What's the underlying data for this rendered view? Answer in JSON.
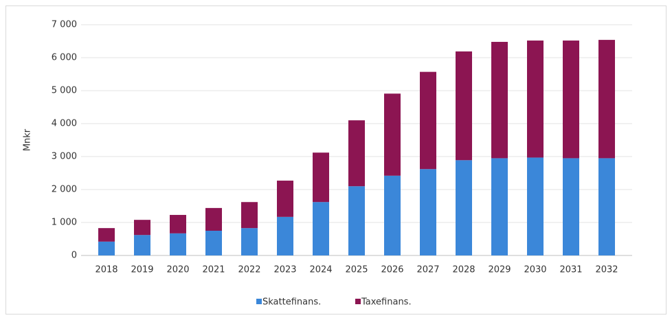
{
  "chart_data": {
    "type": "stacked_bar",
    "y_label": "Mnkr",
    "categories": [
      "2018",
      "2019",
      "2020",
      "2021",
      "2022",
      "2023",
      "2024",
      "2025",
      "2026",
      "2027",
      "2028",
      "2029",
      "2030",
      "2031",
      "2032"
    ],
    "series": [
      {
        "name": "Skattefinans.",
        "color": "#3b87d9",
        "values": [
          420,
          620,
          670,
          750,
          830,
          1170,
          1620,
          2100,
          2420,
          2620,
          2890,
          2950,
          2970,
          2950,
          2950
        ]
      },
      {
        "name": "Taxefinans.",
        "color": "#8c1552",
        "values": [
          410,
          460,
          560,
          690,
          790,
          1100,
          1500,
          2000,
          2490,
          2950,
          3300,
          3530,
          3550,
          3570,
          3590
        ]
      }
    ],
    "ylim": [
      0,
      7000
    ],
    "yticks": [
      0,
      {
        "value": 1000,
        "label": "1 000"
      },
      {
        "value": 2000,
        "label": "2 000"
      },
      {
        "value": 3000,
        "label": "3 000"
      },
      {
        "value": 4000,
        "label": "4 000"
      },
      {
        "value": 5000,
        "label": "5 000"
      },
      {
        "value": 6000,
        "label": "6 000"
      },
      {
        "value": 7000,
        "label": "7 000"
      }
    ],
    "grid": true,
    "legend": "bottom"
  }
}
